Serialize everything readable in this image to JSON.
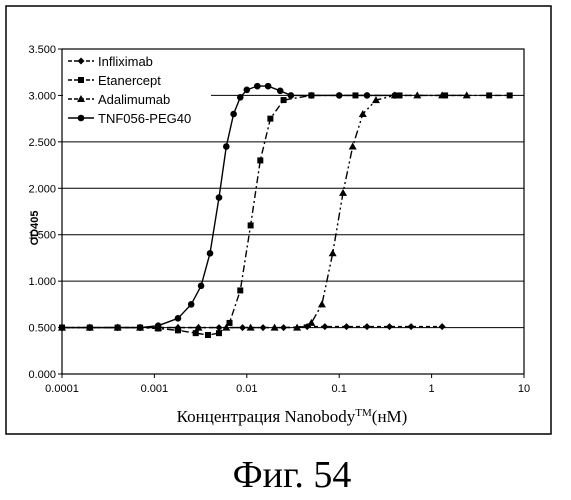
{
  "chart_data": {
    "type": "line",
    "title": "",
    "xlabel": "Концентрация Nanobody",
    "xlabel_sup": "TM",
    "xlabel_unit": "(нМ)",
    "ylabel": "OD405",
    "x_scale": "log",
    "xlim": [
      0.0001,
      10
    ],
    "ylim": [
      0,
      3.5
    ],
    "x_tick_labels": [
      "0.0001",
      "0.001",
      "0.01",
      "0.1",
      "1",
      "10"
    ],
    "y_tick_labels": [
      "0.000",
      "0.500",
      "1.000",
      "1.500",
      "2.000",
      "2.500",
      "3.000",
      "3.500"
    ],
    "grid": "horizontal",
    "legend_position": "top-left",
    "series": [
      {
        "name": "Infliximab",
        "marker": "diamond",
        "dash": "4,3",
        "x": [
          0.0001,
          0.0002,
          0.0004,
          0.0007,
          0.0011,
          0.0018,
          0.003,
          0.005,
          0.009,
          0.015,
          0.025,
          0.045,
          0.07,
          0.12,
          0.2,
          0.35,
          0.6,
          1.3
        ],
        "y": [
          0.5,
          0.5,
          0.5,
          0.5,
          0.5,
          0.5,
          0.5,
          0.5,
          0.5,
          0.5,
          0.5,
          0.51,
          0.51,
          0.51,
          0.51,
          0.51,
          0.51,
          0.51
        ]
      },
      {
        "name": "Etanercept",
        "marker": "square",
        "dash": "7,3,2,3",
        "x": [
          0.0001,
          0.0002,
          0.0004,
          0.0007,
          0.0011,
          0.0018,
          0.0028,
          0.0038,
          0.005,
          0.0065,
          0.0085,
          0.011,
          0.014,
          0.018,
          0.025,
          0.05,
          0.15,
          0.45,
          1.4,
          4.2,
          7.0
        ],
        "y": [
          0.5,
          0.5,
          0.5,
          0.5,
          0.49,
          0.47,
          0.44,
          0.42,
          0.44,
          0.55,
          0.9,
          1.6,
          2.3,
          2.75,
          2.95,
          3.0,
          3.0,
          3.0,
          3.0,
          3.0,
          3.0
        ]
      },
      {
        "name": "Adalimumab",
        "marker": "triangle",
        "dash": "8,3,2,3,2,3",
        "x": [
          0.0001,
          0.0002,
          0.0004,
          0.0007,
          0.0011,
          0.0018,
          0.003,
          0.006,
          0.011,
          0.02,
          0.035,
          0.05,
          0.065,
          0.085,
          0.11,
          0.14,
          0.18,
          0.25,
          0.4,
          0.7,
          1.3,
          2.4
        ],
        "y": [
          0.5,
          0.5,
          0.5,
          0.5,
          0.5,
          0.5,
          0.5,
          0.5,
          0.5,
          0.5,
          0.5,
          0.55,
          0.75,
          1.3,
          1.95,
          2.45,
          2.8,
          2.95,
          3.0,
          3.0,
          3.0,
          3.0
        ]
      },
      {
        "name": "TNF056-PEG40",
        "marker": "circle",
        "dash": "",
        "x": [
          0.0001,
          0.0002,
          0.0004,
          0.0007,
          0.0011,
          0.0018,
          0.0025,
          0.0032,
          0.004,
          0.005,
          0.006,
          0.0072,
          0.0085,
          0.01,
          0.013,
          0.017,
          0.023,
          0.03,
          0.05,
          0.1,
          0.2,
          0.4
        ],
        "y": [
          0.5,
          0.5,
          0.5,
          0.5,
          0.52,
          0.6,
          0.75,
          0.95,
          1.3,
          1.9,
          2.45,
          2.8,
          2.98,
          3.06,
          3.1,
          3.1,
          3.05,
          3.0,
          3.0,
          3.0,
          3.0,
          3.0
        ]
      }
    ]
  },
  "caption": "Фиг. 54"
}
